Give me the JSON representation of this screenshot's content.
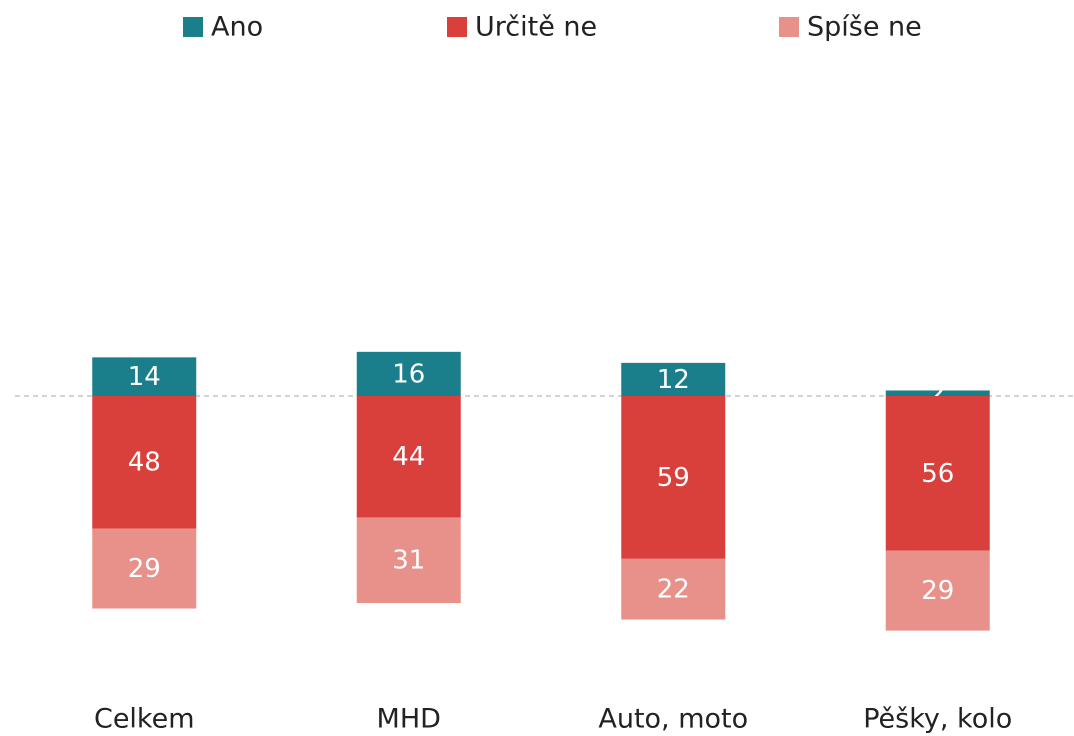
{
  "chart_data": {
    "type": "diverging_stacked_bar",
    "categories": [
      "Celkem",
      "MHD",
      "Auto, moto",
      "Pěšky, kolo"
    ],
    "series": [
      {
        "name": "Ano",
        "color": "#1b7f8b",
        "values": [
          14,
          16,
          12,
          2
        ]
      },
      {
        "name": "Určitě ne",
        "color": "#d9403b",
        "values": [
          -48,
          -44,
          -59,
          -56
        ],
        "value_labels": [
          "48",
          "44",
          "59",
          "56"
        ]
      },
      {
        "name": "Spíše ne",
        "color": "#e8908a",
        "values": [
          -29,
          -31,
          -22,
          -29
        ],
        "value_labels": [
          "29",
          "31",
          "22",
          "29"
        ]
      }
    ],
    "legend": "top"
  }
}
